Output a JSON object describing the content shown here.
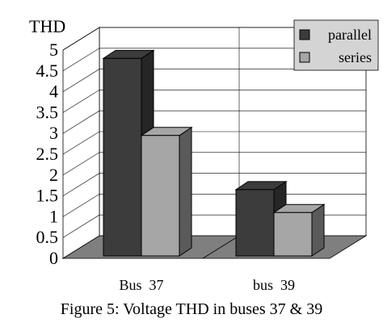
{
  "chart_data": {
    "type": "bar",
    "ylabel": "THD",
    "ylim": [
      0,
      5
    ],
    "yticks": [
      "0",
      "0.5",
      "1",
      "1.5",
      "2",
      "2.5",
      "3",
      "3.5",
      "4",
      "4.5",
      "5"
    ],
    "categories": [
      "Bus  37",
      "bus  39"
    ],
    "series": [
      {
        "name": "parallel",
        "values": [
          4.8,
          1.65
        ],
        "color": "#3c3c3c"
      },
      {
        "name": "series",
        "values": [
          2.95,
          1.1
        ],
        "color": "#a6a6a6"
      }
    ],
    "legend_position": "top-right",
    "grid": true,
    "three_d": true,
    "colors": {
      "floor": "#7f7f7f",
      "side_dark": "#262626",
      "side_light": "#5a5a5a",
      "legend_bg": "#d4d4d4"
    }
  },
  "caption": "Figure 5: Voltage THD in buses 37 & 39"
}
